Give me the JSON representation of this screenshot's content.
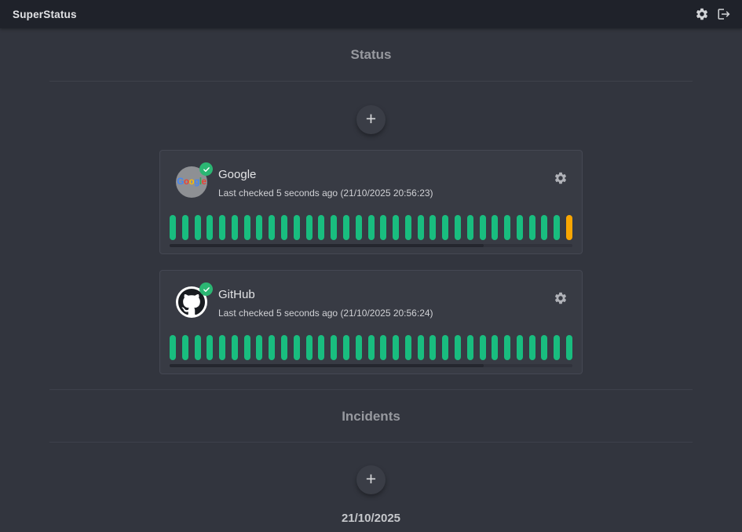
{
  "app_bar": {
    "title": "SuperStatus"
  },
  "status_section": {
    "heading": "Status",
    "add_button_label": "+"
  },
  "incidents_section": {
    "heading": "Incidents",
    "add_button_label": "+",
    "date_group_label": "21/10/2025"
  },
  "services": [
    {
      "name": "Google",
      "last_checked": "Last checked 5 seconds ago (21/10/2025 20:56:23)",
      "overall_status": "operational",
      "history": [
        "up",
        "up",
        "up",
        "up",
        "up",
        "up",
        "up",
        "up",
        "up",
        "up",
        "up",
        "up",
        "up",
        "up",
        "up",
        "up",
        "up",
        "up",
        "up",
        "up",
        "up",
        "up",
        "up",
        "up",
        "up",
        "up",
        "up",
        "up",
        "up",
        "up",
        "up",
        "up",
        "degraded"
      ]
    },
    {
      "name": "GitHub",
      "last_checked": "Last checked 5 seconds ago (21/10/2025 20:56:24)",
      "overall_status": "operational",
      "history": [
        "up",
        "up",
        "up",
        "up",
        "up",
        "up",
        "up",
        "up",
        "up",
        "up",
        "up",
        "up",
        "up",
        "up",
        "up",
        "up",
        "up",
        "up",
        "up",
        "up",
        "up",
        "up",
        "up",
        "up",
        "up",
        "up",
        "up",
        "up",
        "up",
        "up",
        "up",
        "up",
        "up"
      ]
    }
  ],
  "google_logo_letters": [
    {
      "ch": "G",
      "color": "#4285F4"
    },
    {
      "ch": "o",
      "color": "#EA4335"
    },
    {
      "ch": "o",
      "color": "#FBBC05"
    },
    {
      "ch": "g",
      "color": "#4285F4"
    },
    {
      "ch": "l",
      "color": "#34A853"
    },
    {
      "ch": "e",
      "color": "#EA4335"
    }
  ],
  "colors": {
    "bar_up": "#19bd7f",
    "bar_degraded": "#f9a602",
    "badge_ok": "#2bb673",
    "appbar_bg": "#1f222a",
    "page_bg": "#32353e",
    "card_bg": "#383b44"
  },
  "icons": {
    "appbar": [
      "gear-icon",
      "logout-icon"
    ],
    "card_action": "gear-icon",
    "status_badge": "check-icon",
    "add_buttons": "plus"
  }
}
